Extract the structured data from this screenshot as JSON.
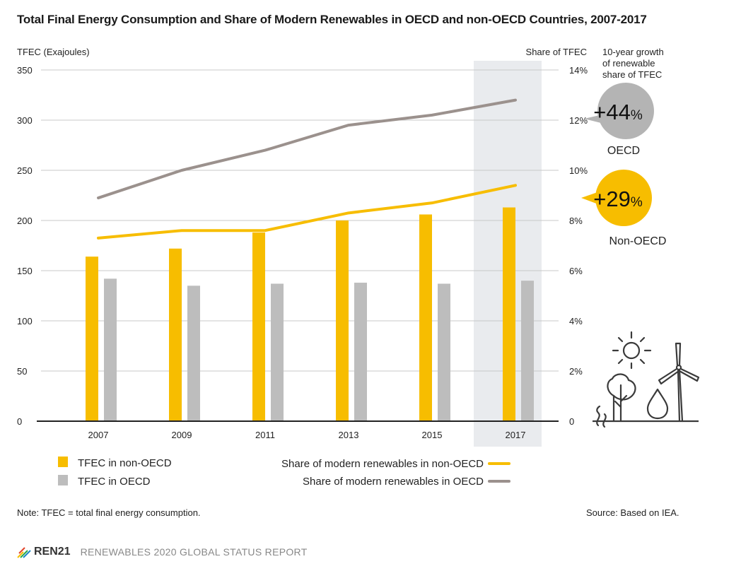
{
  "title": "Total Final Energy Consumption and Share of Modern Renewables in OECD and non-OECD Countries, 2007-2017",
  "colors": {
    "non_oecd": "#F7BD00",
    "oecd": "#BDBDBD",
    "oecd_line": "#9B918D",
    "highlight": "#E9EBEE",
    "grid": "#C8C8C8",
    "axis": "#222222"
  },
  "chart_data": {
    "type": "bar",
    "categories": [
      "2007",
      "2009",
      "2011",
      "2013",
      "2015",
      "2017"
    ],
    "ylabel": "TFEC (Exajoules)",
    "y2label": "Share of TFEC",
    "ylim": [
      0,
      350
    ],
    "y2lim": [
      0,
      14
    ],
    "yticks": [
      "0",
      "50",
      "100",
      "150",
      "200",
      "250",
      "300",
      "350"
    ],
    "y2ticks": [
      "0",
      "2%",
      "4%",
      "6%",
      "8%",
      "10%",
      "12%",
      "14%"
    ],
    "grid": true,
    "highlighted_category": "2017",
    "bar_series": [
      {
        "name": "TFEC in non-OECD",
        "values": [
          164,
          172,
          188,
          200,
          206,
          213
        ]
      },
      {
        "name": "TFEC in OECD",
        "values": [
          142,
          135,
          137,
          138,
          137,
          140
        ]
      }
    ],
    "line_series": [
      {
        "name": "Share of modern renewables in non-OECD",
        "values": [
          7.3,
          7.6,
          7.6,
          8.3,
          8.7,
          9.4
        ]
      },
      {
        "name": "Share of modern renewables in OECD",
        "values": [
          8.9,
          10.0,
          10.8,
          11.8,
          12.2,
          12.8
        ]
      }
    ],
    "annotations": {
      "growth_header": [
        "10-year growth",
        "of renewable",
        "share of TFEC"
      ],
      "oecd_growth": "+44",
      "oecd_label": "OECD",
      "non_oecd_growth": "+29",
      "non_oecd_label": "Non-OECD",
      "percent_sign": "%"
    }
  },
  "note": "Note: TFEC = total final energy consumption.",
  "source": "Source: Based on IEA.",
  "footer": {
    "logo": "REN21",
    "report": "RENEWABLES 2020 GLOBAL STATUS REPORT"
  },
  "icons": [
    "sun-icon",
    "tree-icon",
    "water-drop-icon",
    "wind-turbine-icon",
    "grass-icon"
  ]
}
